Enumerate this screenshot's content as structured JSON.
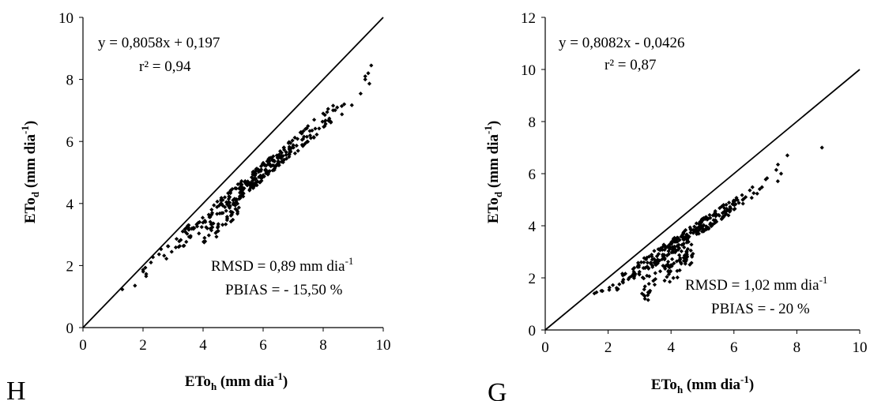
{
  "chart_data": [
    {
      "type": "scatter",
      "panel_label": "H",
      "xlabel": {
        "main": "ETo",
        "sub": "h",
        "units_open": " (mm dia",
        "units_sup": "-1",
        "units_close": ")"
      },
      "ylabel": {
        "main": "ETo",
        "sub": "d",
        "units_open": "  (mm dia",
        "units_sup": "-1",
        "units_close": ")"
      },
      "xlim": [
        0,
        10
      ],
      "ylim": [
        0,
        10
      ],
      "xticks": [
        "0",
        "2",
        "4",
        "6",
        "8",
        "10"
      ],
      "yticks": [
        "0",
        "2",
        "4",
        "6",
        "8",
        "10"
      ],
      "grid": false,
      "legend": "none",
      "reference_line": "1:1",
      "annotations": {
        "equation": "y = 0,8058x + 0,197",
        "r2": "r² = 0,94",
        "rmsd_text": "RMSD = 0,89 mm dia",
        "rmsd_sup": "-1",
        "pbias": "PBIAS = - 15,50 %"
      },
      "regression": {
        "slope": 0.8058,
        "intercept": 0.197
      },
      "points_model": {
        "x_min": 1.2,
        "x_max": 9.6,
        "n": 360,
        "lower_band_x": [
          4.0,
          5.2
        ],
        "lower_band_drop": 0.45,
        "outliers": [
          [
            8.7,
            7.2
          ],
          [
            9.4,
            8.0
          ],
          [
            9.5,
            8.2
          ],
          [
            9.6,
            8.45
          ],
          [
            9.4,
            8.1
          ],
          [
            8.0,
            6.9
          ],
          [
            7.7,
            6.7
          ]
        ]
      },
      "marker_color": "#000000"
    },
    {
      "type": "scatter",
      "panel_label": "G",
      "xlabel": {
        "main": "ETo",
        "sub": "h",
        "units_open": " (mm dia",
        "units_sup": "-1",
        "units_close": ")"
      },
      "ylabel": {
        "main": "ETo",
        "sub": "d",
        "units_open": "  (mm dia",
        "units_sup": "-1",
        "units_close": ")"
      },
      "xlim": [
        0,
        10
      ],
      "ylim": [
        0,
        12
      ],
      "xticks": [
        "0",
        "2",
        "4",
        "6",
        "8",
        "10"
      ],
      "yticks": [
        "0",
        "2",
        "4",
        "6",
        "8",
        "10",
        "12"
      ],
      "grid": false,
      "legend": "none",
      "reference_line": "1:1",
      "annotations": {
        "equation": "y = 0,8082x - 0,0426",
        "r2": "r² = 0,87",
        "rmsd_text": "RMSD = 1,02 mm dia",
        "rmsd_sup": "-1",
        "pbias": "PBIAS = - 20 %"
      },
      "regression": {
        "slope": 0.8082,
        "intercept": -0.0426
      },
      "points_model": {
        "x_min": 1.0,
        "x_max": 7.6,
        "n": 360,
        "lower_band_x": [
          3.0,
          4.8
        ],
        "lower_band_drop": 0.8,
        "outliers": [
          [
            8.8,
            7.0
          ],
          [
            7.7,
            6.7
          ],
          [
            7.5,
            6.0
          ],
          [
            7.4,
            6.35
          ]
        ]
      },
      "marker_color": "#000000"
    }
  ]
}
